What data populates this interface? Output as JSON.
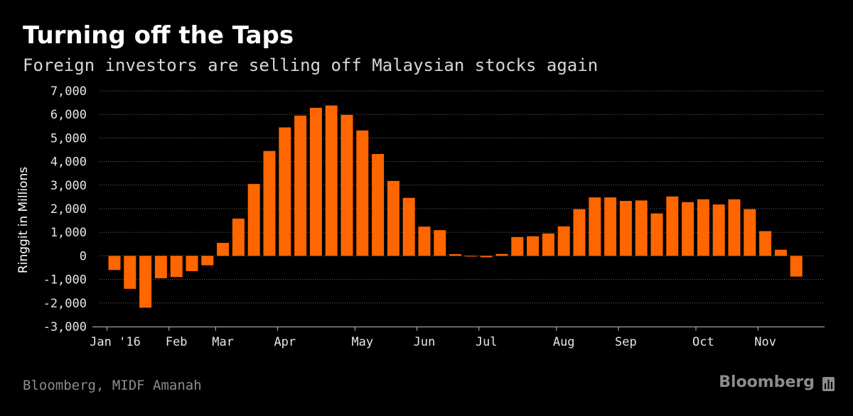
{
  "chart_data": {
    "type": "bar",
    "title": "Turning off the Taps",
    "subtitle": "Foreign investors are selling off Malaysian stocks again",
    "ylabel": "Ringgit in Millions",
    "xlabel": "",
    "ylim": [
      -3000,
      7000
    ],
    "yticks": [
      7000,
      6000,
      5000,
      4000,
      3000,
      2000,
      1000,
      0,
      -1000,
      -2000,
      -3000
    ],
    "ytick_labels": [
      "7,000",
      "6,000",
      "5,000",
      "4,000",
      "3,000",
      "2,000",
      "1,000",
      "0",
      "-1,000",
      "-2,000",
      "-3,000"
    ],
    "grid": true,
    "x_labels": [
      {
        "label": "Jan '16",
        "bar_index": 0
      },
      {
        "label": "Feb",
        "bar_index": 4
      },
      {
        "label": "Mar",
        "bar_index": 7
      },
      {
        "label": "Apr",
        "bar_index": 11
      },
      {
        "label": "May",
        "bar_index": 16
      },
      {
        "label": "Jun",
        "bar_index": 20
      },
      {
        "label": "Jul",
        "bar_index": 24
      },
      {
        "label": "Aug",
        "bar_index": 29
      },
      {
        "label": "Sep",
        "bar_index": 33
      },
      {
        "label": "Oct",
        "bar_index": 38
      },
      {
        "label": "Nov",
        "bar_index": 42
      }
    ],
    "values": [
      -600,
      -1400,
      -2200,
      -950,
      -900,
      -650,
      -400,
      550,
      1580,
      3050,
      4450,
      5450,
      5950,
      6280,
      6380,
      5980,
      5320,
      4320,
      3180,
      2460,
      1240,
      1090,
      70,
      -30,
      -60,
      80,
      800,
      830,
      950,
      1250,
      1980,
      2480,
      2480,
      2330,
      2350,
      1800,
      2520,
      2280,
      2400,
      2180,
      2400,
      1980,
      1050,
      260,
      -880
    ],
    "series_color": "#ff6600"
  },
  "footer": {
    "source": "Bloomberg, MIDF Amanah",
    "brand": "Bloomberg"
  }
}
